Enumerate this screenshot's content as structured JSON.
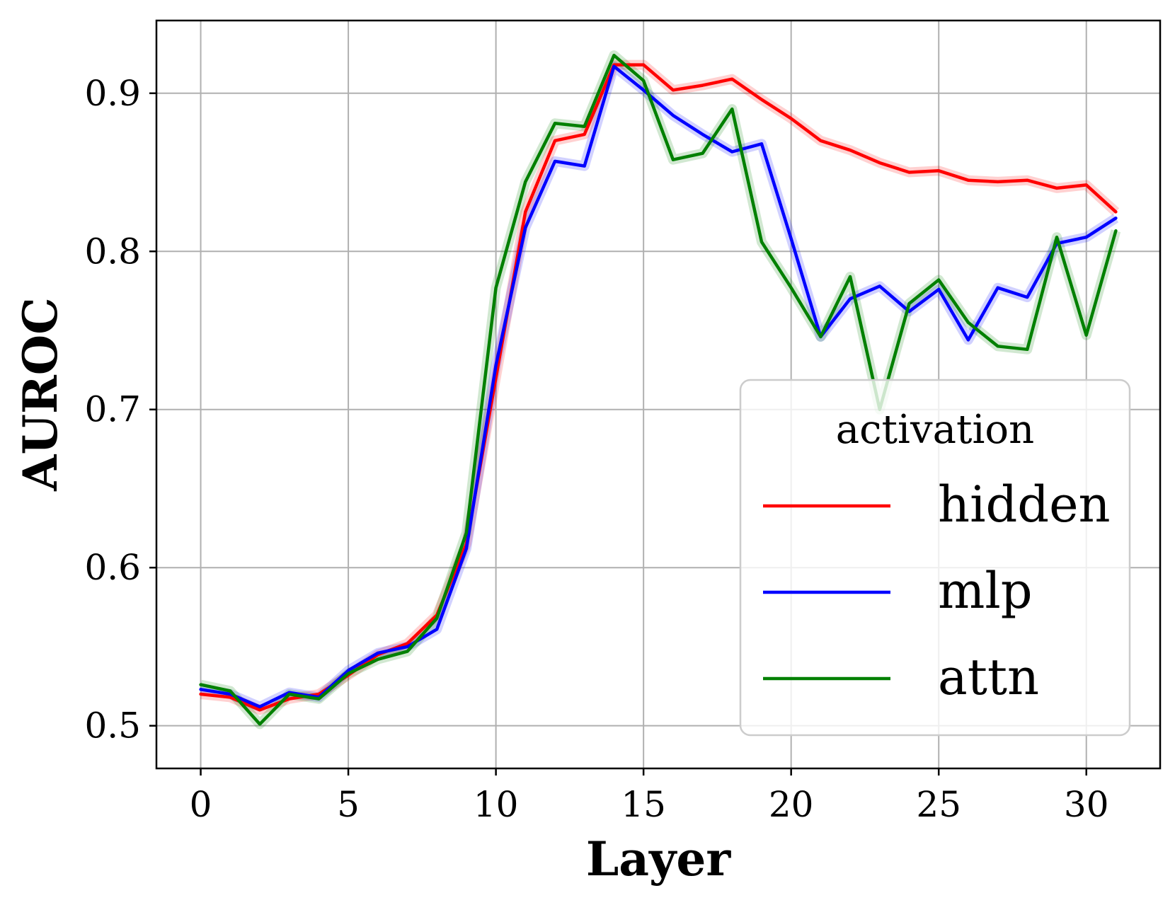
{
  "chart_data": {
    "type": "line",
    "title": "",
    "xlabel": "Layer",
    "ylabel": "AUROC",
    "xlim": [
      -1.5,
      32.5
    ],
    "ylim": [
      0.473,
      0.946
    ],
    "xticks": [
      0,
      5,
      10,
      15,
      20,
      25,
      30
    ],
    "xtick_labels": [
      "0",
      "5",
      "10",
      "15",
      "20",
      "25",
      "30"
    ],
    "yticks": [
      0.5,
      0.6,
      0.7,
      0.8,
      0.9
    ],
    "ytick_labels": [
      "0.5",
      "0.6",
      "0.7",
      "0.8",
      "0.9"
    ],
    "grid": true,
    "legend": {
      "title": "activation",
      "placement": "lower-right"
    },
    "x": [
      0,
      1,
      2,
      3,
      4,
      5,
      6,
      7,
      8,
      9,
      10,
      11,
      12,
      13,
      14,
      15,
      16,
      17,
      18,
      19,
      20,
      21,
      22,
      23,
      24,
      25,
      26,
      27,
      28,
      29,
      30,
      31
    ],
    "series": [
      {
        "name": "hidden",
        "color": "#ff0000",
        "values": [
          0.52,
          0.518,
          0.51,
          0.517,
          0.52,
          0.532,
          0.545,
          0.552,
          0.57,
          0.615,
          0.72,
          0.825,
          0.87,
          0.874,
          0.918,
          0.918,
          0.902,
          0.905,
          0.909,
          0.896,
          0.884,
          0.87,
          0.864,
          0.856,
          0.85,
          0.851,
          0.845,
          0.844,
          0.845,
          0.84,
          0.842,
          0.825
        ]
      },
      {
        "name": "mlp",
        "color": "#0000ff",
        "values": [
          0.523,
          0.52,
          0.512,
          0.521,
          0.518,
          0.535,
          0.546,
          0.55,
          0.561,
          0.612,
          0.728,
          0.815,
          0.857,
          0.854,
          0.917,
          0.902,
          0.886,
          0.874,
          0.863,
          0.868,
          0.808,
          0.746,
          0.77,
          0.778,
          0.762,
          0.776,
          0.744,
          0.777,
          0.771,
          0.805,
          0.809,
          0.821
        ]
      },
      {
        "name": "attn",
        "color": "#008000",
        "values": [
          0.526,
          0.522,
          0.501,
          0.52,
          0.517,
          0.533,
          0.542,
          0.547,
          0.568,
          0.622,
          0.777,
          0.844,
          0.881,
          0.879,
          0.924,
          0.908,
          0.858,
          0.862,
          0.89,
          0.806,
          0.777,
          0.746,
          0.784,
          0.7,
          0.767,
          0.782,
          0.755,
          0.74,
          0.738,
          0.809,
          0.747,
          0.813
        ]
      }
    ]
  }
}
